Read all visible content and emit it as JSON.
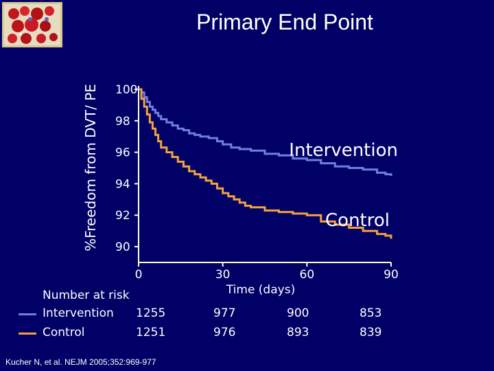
{
  "title": "Primary End Point",
  "citation": "Kucher N, et al. NEJM 2005;352:969-977",
  "logo_icon": "blood-cells-image-icon",
  "colors": {
    "background": "#000066",
    "intervention": "#6f7fe0",
    "control": "#f4a23c",
    "text": "#ffffff"
  },
  "chart_data": {
    "type": "line",
    "title": "Primary End Point",
    "ylabel": "%Freedom from DVT/ PE",
    "xlabel": "Time (days)",
    "xlim": [
      0,
      90
    ],
    "ylim": [
      90,
      100
    ],
    "x_ticks": [
      "0",
      "30",
      "60",
      "90"
    ],
    "y_ticks": [
      "100",
      "98",
      "96",
      "94",
      "92",
      "90"
    ],
    "grid": false,
    "series": [
      {
        "name": "Intervention",
        "x": [
          0,
          1,
          2,
          3,
          4,
          5,
          6,
          7,
          8,
          10,
          12,
          14,
          16,
          18,
          20,
          22,
          25,
          28,
          30,
          33,
          36,
          40,
          45,
          50,
          55,
          60,
          65,
          70,
          75,
          80,
          85,
          88,
          90
        ],
        "values": [
          100,
          99.8,
          99.5,
          99.2,
          98.9,
          98.7,
          98.5,
          98.3,
          98.1,
          97.9,
          97.7,
          97.5,
          97.4,
          97.2,
          97.1,
          97.0,
          96.9,
          96.7,
          96.5,
          96.3,
          96.2,
          96.1,
          95.9,
          95.8,
          95.6,
          95.5,
          95.3,
          95.1,
          95.0,
          94.9,
          94.7,
          94.6,
          94.5
        ]
      },
      {
        "name": "Control",
        "x": [
          0,
          1,
          2,
          3,
          4,
          5,
          6,
          7,
          8,
          10,
          12,
          14,
          16,
          18,
          20,
          22,
          24,
          26,
          28,
          30,
          32,
          34,
          36,
          38,
          40,
          45,
          50,
          55,
          60,
          65,
          70,
          75,
          80,
          85,
          88,
          90
        ],
        "values": [
          100,
          99.4,
          98.9,
          98.4,
          97.9,
          97.5,
          97.1,
          96.7,
          96.3,
          96.0,
          95.7,
          95.4,
          95.1,
          94.8,
          94.6,
          94.4,
          94.2,
          94.0,
          93.7,
          93.4,
          93.2,
          93.0,
          92.8,
          92.6,
          92.5,
          92.3,
          92.2,
          92.1,
          92.0,
          91.6,
          91.4,
          91.2,
          91.0,
          90.8,
          90.7,
          90.5
        ]
      }
    ]
  },
  "risk_table": {
    "header": "Number at risk",
    "rows": [
      {
        "label": "Intervention",
        "values": [
          "1255",
          "977",
          "900",
          "853"
        ]
      },
      {
        "label": "Control",
        "values": [
          "1251",
          "976",
          "893",
          "839"
        ]
      }
    ]
  }
}
